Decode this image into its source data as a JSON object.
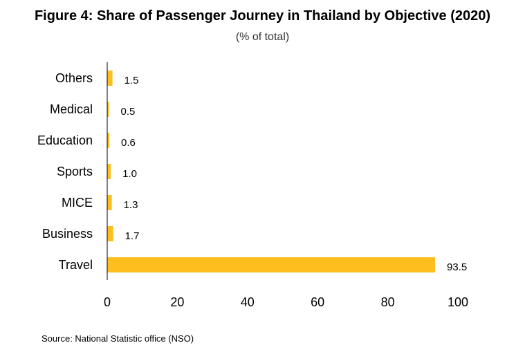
{
  "chart_data": {
    "type": "bar",
    "orientation": "horizontal",
    "title": "Figure 4:  Share of  Passenger Journey in Thailand  by Objective (2020)",
    "subtitle": "(% of total)",
    "categories": [
      "Others",
      "Medical",
      "Education",
      "Sports",
      "MICE",
      "Business",
      "Travel"
    ],
    "values": [
      1.5,
      0.5,
      0.6,
      1.0,
      1.3,
      1.7,
      93.5
    ],
    "data_labels": [
      "1.5",
      "0.5",
      "0.6",
      "1.0",
      "1.3",
      "1.7",
      "93.5"
    ],
    "xlim": [
      0,
      100
    ],
    "x_ticks": [
      0,
      20,
      40,
      60,
      80,
      100
    ],
    "bar_color": "#FDBE1E",
    "grid": false,
    "legend": "none"
  },
  "source": "Source: National Statistic office (NSO)"
}
